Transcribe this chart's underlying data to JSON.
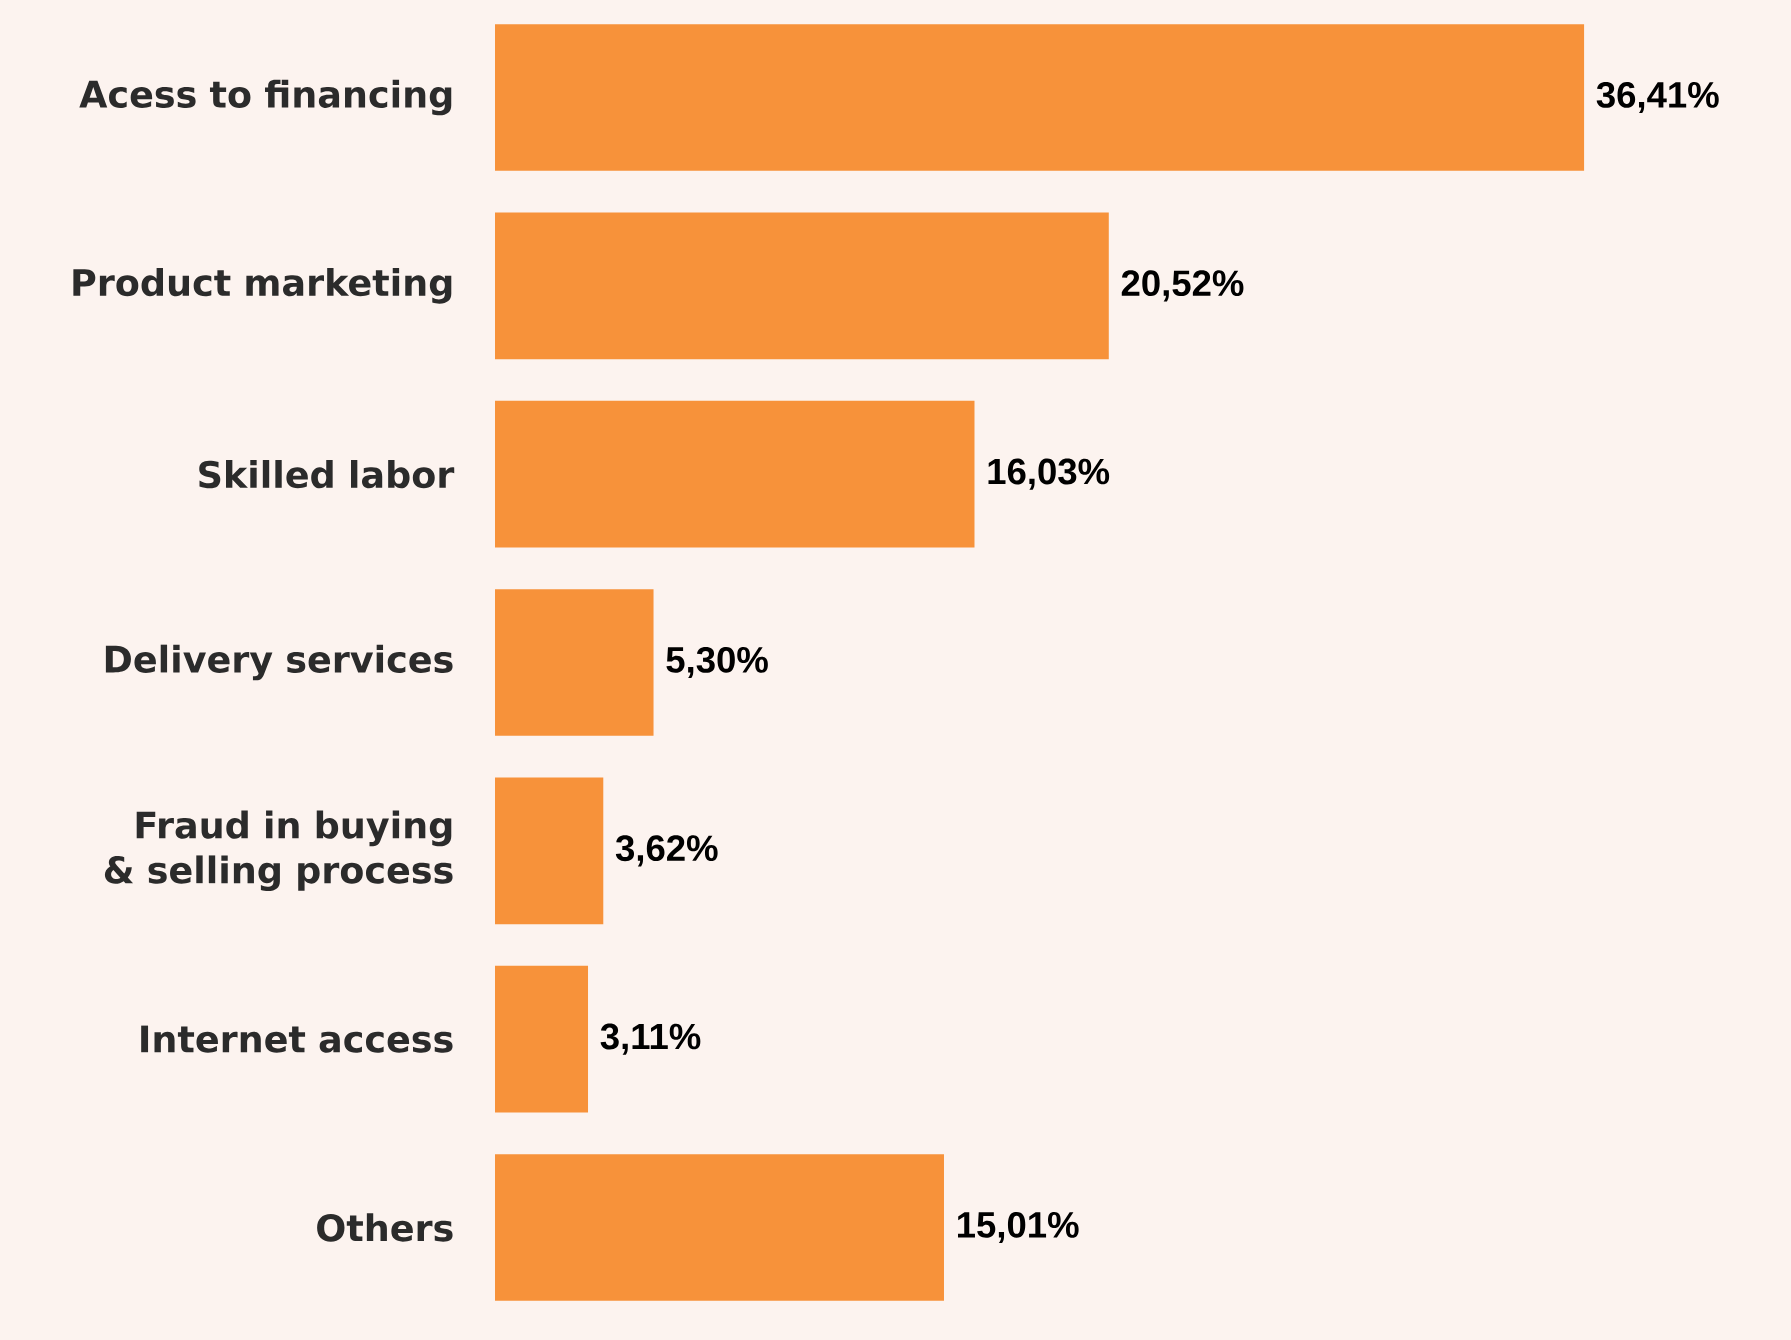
{
  "chart_data": {
    "type": "bar",
    "orientation": "horizontal",
    "categories": [
      "Acess to financing",
      "Product marketing",
      "Skilled labor",
      "Delivery services",
      "Fraud in buying & selling process",
      "Internet access",
      "Others"
    ],
    "values": [
      36.41,
      20.52,
      16.03,
      5.3,
      3.62,
      3.11,
      15.01
    ],
    "value_labels": [
      "36,41%",
      "20,52%",
      "16,03%",
      "5,30%",
      "3,62%",
      "3,11%",
      "15,01%"
    ],
    "color": "#f7923a"
  }
}
